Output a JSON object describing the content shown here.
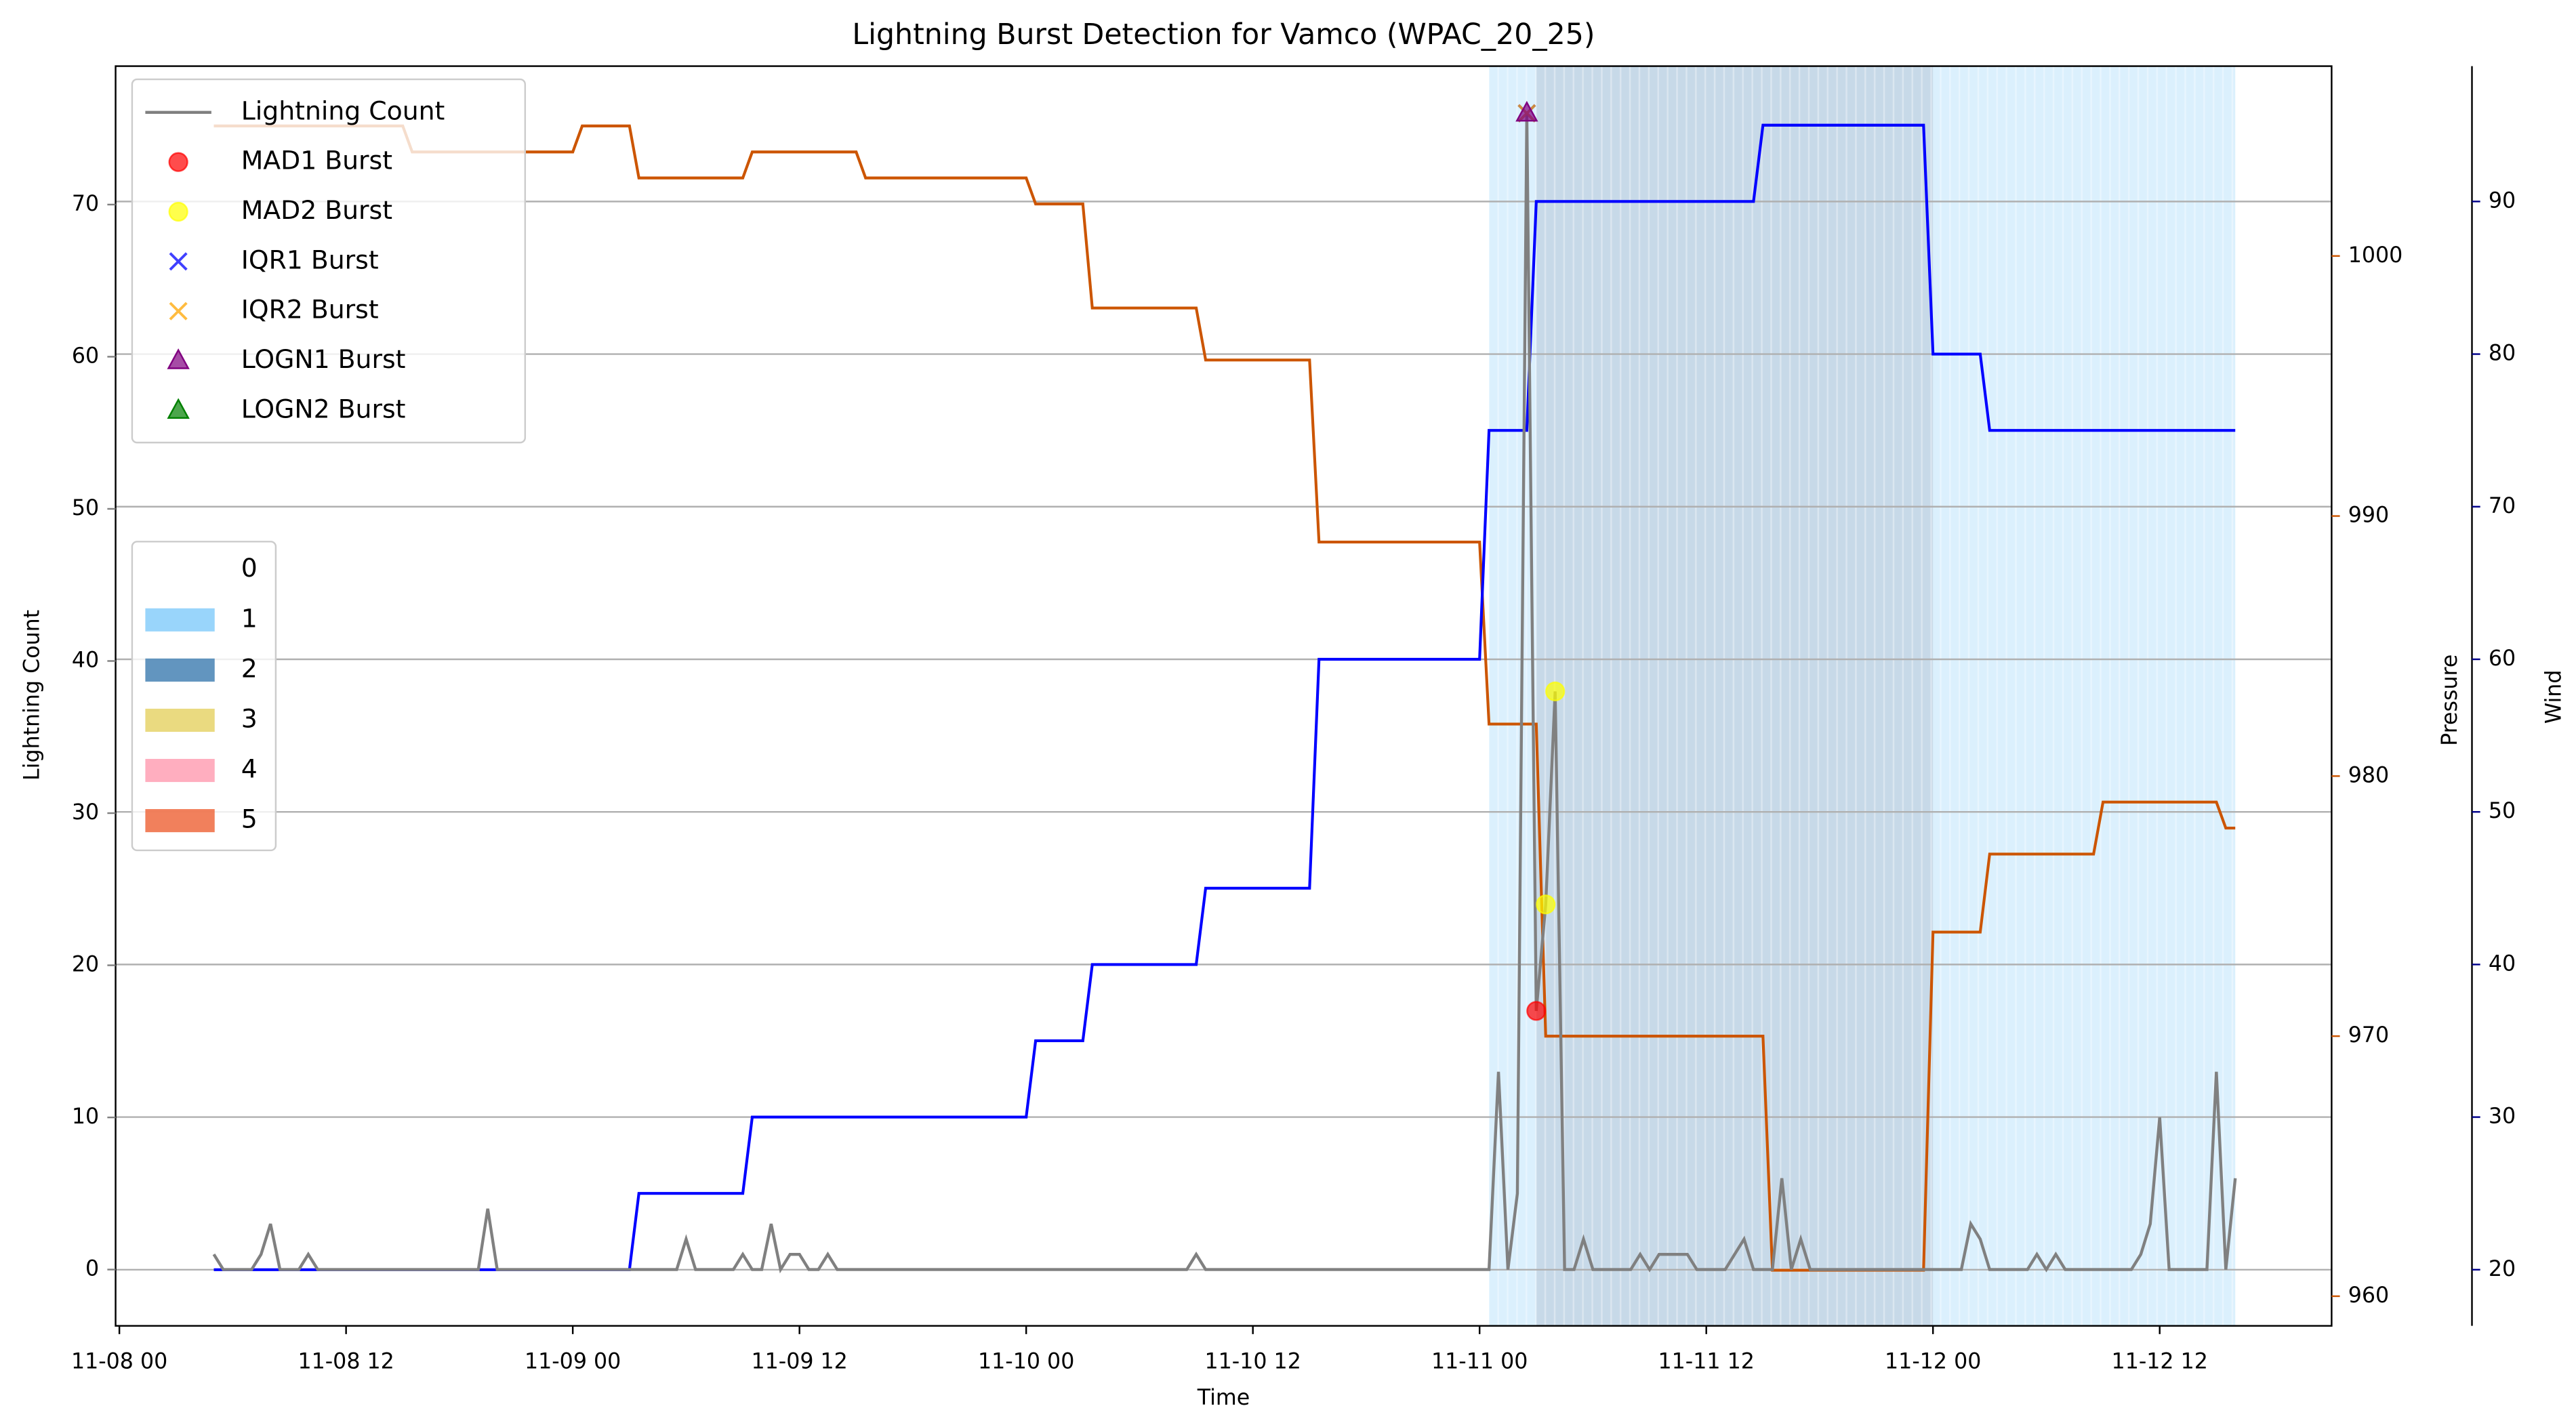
{
  "chart_data": {
    "type": "line",
    "title": "Lightning Burst Detection for Vamco (WPAC_20_25)",
    "x_label": "Time",
    "y_label": "Lightning Count",
    "y2_label": "Pressure",
    "y3_label": "Wind",
    "y_label_color": "#808080",
    "y2_label_color": "#cc5500",
    "y3_label_color": "#00008b",
    "xlim": [
      -0.2,
      117.1
    ],
    "xticks": [
      {
        "value": 0,
        "label": "11-08 00"
      },
      {
        "value": 12,
        "label": "11-08 12"
      },
      {
        "value": 24,
        "label": "11-09 00"
      },
      {
        "value": 36,
        "label": "11-09 12"
      },
      {
        "value": 48,
        "label": "11-10 00"
      },
      {
        "value": 60,
        "label": "11-10 12"
      },
      {
        "value": 72,
        "label": "11-11 00"
      },
      {
        "value": 84,
        "label": "11-11 12"
      },
      {
        "value": 96,
        "label": "11-12 00"
      },
      {
        "value": 108,
        "label": "11-12 12"
      }
    ],
    "ylim": [
      -3.7,
      79.1
    ],
    "yticks": [
      0,
      10,
      20,
      30,
      40,
      50,
      60,
      70
    ],
    "y2lim": [
      958.86,
      1007.3
    ],
    "y2ticks": [
      960,
      970,
      980,
      990,
      1000
    ],
    "y3lim": [
      16.32,
      98.87
    ],
    "y3ticks": [
      20,
      30,
      40,
      50,
      60,
      70,
      80,
      90
    ],
    "grid_axis": "y3",
    "legend_position": "upper left",
    "series": [
      {
        "name": "Lightning Count",
        "color": "#808080",
        "marker": "line",
        "axis": "y",
        "x": [
          5,
          5.5,
          7,
          7.5,
          8,
          8.5,
          9.5,
          10,
          10.5,
          19,
          19.5,
          20,
          29.5,
          30,
          30.5,
          32.5,
          33,
          33.5,
          34,
          34.5,
          35,
          35.5,
          36,
          36.5,
          37,
          37.5,
          38,
          56.5,
          57,
          57.5,
          72.5,
          73,
          73.5,
          74,
          74.5,
          75,
          75.5,
          76,
          76.5,
          77,
          77.5,
          78,
          80,
          80.5,
          81,
          81.5,
          83,
          83.5,
          85,
          85.5,
          86,
          86.5,
          87.5,
          88,
          88.5,
          89,
          89.5,
          97.5,
          98,
          98.5,
          99,
          101,
          101.5,
          102,
          102.5,
          103,
          106.5,
          107,
          107.5,
          108,
          108.5,
          110.5,
          111,
          111.5,
          112
        ],
        "values": [
          1,
          0,
          0,
          1,
          3,
          0,
          0,
          1,
          0,
          0,
          4,
          0,
          0,
          2,
          0,
          0,
          1,
          0,
          0,
          3,
          0,
          1,
          1,
          0,
          0,
          1,
          0,
          0,
          1,
          0,
          0,
          13,
          0,
          5,
          76,
          17,
          24,
          38,
          0,
          0,
          2,
          0,
          0,
          1,
          0,
          1,
          1,
          0,
          0,
          1,
          2,
          0,
          0,
          6,
          0,
          2,
          0,
          0,
          3,
          2,
          0,
          0,
          1,
          0,
          1,
          0,
          0,
          1,
          3,
          10,
          0,
          0,
          13,
          0,
          6
        ]
      },
      {
        "name": "MAD1 Burst",
        "color": "#ff0000",
        "marker": "o",
        "axis": "y",
        "x": [
          75
        ],
        "values": [
          17
        ]
      },
      {
        "name": "MAD2 Burst",
        "color": "#ffff00",
        "marker": "o",
        "axis": "y",
        "x": [
          75.5,
          76
        ],
        "values": [
          24,
          38
        ]
      },
      {
        "name": "IQR1 Burst",
        "color": "#0000ff",
        "marker": "x",
        "axis": "y",
        "x": [
          74.5
        ],
        "values": [
          76
        ]
      },
      {
        "name": "IQR2 Burst",
        "color": "#ffa500",
        "marker": "x",
        "axis": "y",
        "x": [
          74.5
        ],
        "values": [
          76
        ]
      },
      {
        "name": "LOGN1 Burst",
        "color": "#800080",
        "marker": "^",
        "axis": "y",
        "x": [
          74.5
        ],
        "values": [
          76
        ]
      },
      {
        "name": "LOGN2 Burst",
        "color": "#008000",
        "marker": "^",
        "axis": "y",
        "x": [],
        "values": []
      }
    ],
    "lines": [
      {
        "color": "#cc5500",
        "axis": "y2",
        "x": [
          5,
          15,
          15.5,
          24,
          24.5,
          27,
          27.5,
          33,
          33.5,
          39,
          39.5,
          48,
          48.5,
          51,
          51.5,
          57,
          57.5,
          63,
          63.5,
          72,
          72.5,
          75,
          75.5,
          87,
          87.5,
          95.5,
          96,
          98.5,
          99,
          104.5,
          105,
          111,
          111.5,
          112
        ],
        "values": [
          1005,
          1005,
          1004,
          1004,
          1005,
          1005,
          1003,
          1003,
          1004,
          1004,
          1003,
          1003,
          1002,
          1002,
          998,
          998,
          996,
          996,
          989,
          989,
          982,
          982,
          970,
          970,
          961,
          961,
          974,
          974,
          977,
          977,
          979,
          979,
          978,
          978
        ]
      },
      {
        "color": "#0000ff",
        "axis": "y3",
        "x": [
          5,
          27,
          27.5,
          33,
          33.5,
          48,
          48.5,
          51,
          51.5,
          57,
          57.5,
          63,
          63.5,
          72,
          72.5,
          74.5,
          75,
          86.5,
          87,
          95.5,
          96,
          98.5,
          99,
          112
        ],
        "values": [
          20,
          20,
          25,
          25,
          30,
          30,
          35,
          35,
          40,
          40,
          45,
          45,
          60,
          60,
          75,
          75,
          90,
          90,
          95,
          95,
          80,
          80,
          75,
          75
        ]
      }
    ],
    "intensity_legend": [
      {
        "label": "0",
        "color": "#ffffff"
      },
      {
        "label": "1",
        "color": "#87cefa"
      },
      {
        "label": "2",
        "color": "#4682b4"
      },
      {
        "label": "3",
        "color": "#e6d36a"
      },
      {
        "label": "4",
        "color": "#ffa0b4"
      },
      {
        "label": "5",
        "color": "#ee6a40"
      }
    ],
    "intensity_bands": [
      {
        "start": 72.5,
        "end": 75,
        "level": 1
      },
      {
        "start": 75,
        "end": 96,
        "level": 2
      },
      {
        "start": 96,
        "end": 112,
        "level": 1
      }
    ]
  }
}
